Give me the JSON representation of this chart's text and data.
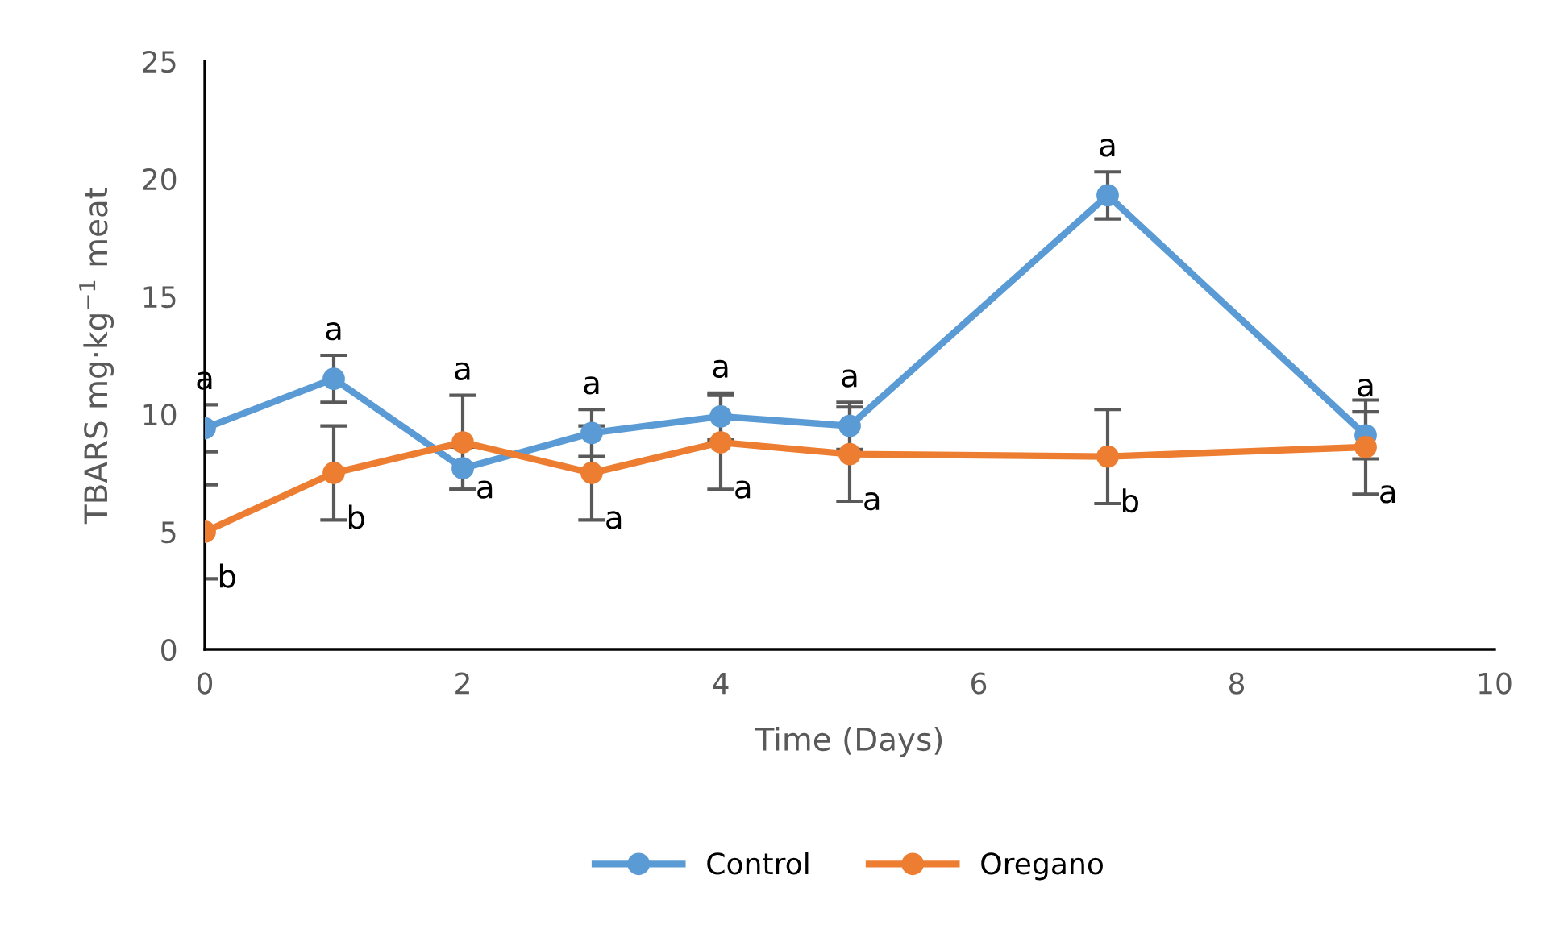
{
  "chart_data": {
    "type": "line",
    "xlabel": "Time (Days)",
    "ylabel": "TBARS mg·kg$^{−1}$ meat",
    "xlim": [
      0,
      10
    ],
    "xticks": [
      0,
      2,
      4,
      6,
      8,
      10
    ],
    "ylim": [
      0,
      25
    ],
    "yticks": [
      0,
      5,
      10,
      15,
      20,
      25
    ],
    "grid": false,
    "legend": "bottom",
    "marker": "circle",
    "line_style": "solid",
    "series": [
      {
        "name": "Control",
        "color": "#5b9bd5",
        "x": [
          0,
          1,
          2,
          3,
          4,
          5,
          7,
          9
        ],
        "values": [
          9.4,
          11.5,
          7.7,
          9.2,
          9.9,
          9.5,
          19.3,
          9.1
        ],
        "errors": [
          1.0,
          1.0,
          0.9,
          1.0,
          1.0,
          1.0,
          1.0,
          1.0
        ]
      },
      {
        "name": "Oregano",
        "color": "#ed7d31",
        "x": [
          0,
          1,
          2,
          3,
          4,
          5,
          7,
          9
        ],
        "values": [
          5.0,
          7.5,
          8.8,
          7.5,
          8.8,
          8.3,
          8.2,
          8.6
        ],
        "errors": [
          2.0,
          2.0,
          2.0,
          2.0,
          2.0,
          2.0,
          2.0,
          2.0
        ]
      }
    ],
    "annotations": [
      {
        "text": "a",
        "x": 0,
        "y": 9.4
      },
      {
        "text": "a",
        "x": 1,
        "y": 11.5
      },
      {
        "text": "a",
        "x": 2,
        "y": 8.8
      },
      {
        "text": "a",
        "x": 3,
        "y": 9.2
      },
      {
        "text": "a",
        "x": 4,
        "y": 9.9
      },
      {
        "text": "a",
        "x": 5,
        "y": 9.5
      },
      {
        "text": "a",
        "x": 7,
        "y": 19.3
      },
      {
        "text": "a",
        "x": 9,
        "y": 9.1
      },
      {
        "text": "b",
        "x": 0,
        "y": 5.0
      },
      {
        "text": "b",
        "x": 1,
        "y": 7.5
      },
      {
        "text": "a",
        "x": 2,
        "y": 7.7
      },
      {
        "text": "a",
        "x": 3,
        "y": 7.5
      },
      {
        "text": "a",
        "x": 4,
        "y": 8.8
      },
      {
        "text": "a",
        "x": 5,
        "y": 8.3
      },
      {
        "text": "b",
        "x": 7,
        "y": 8.2
      },
      {
        "text": "a",
        "x": 9,
        "y": 8.6
      }
    ]
  }
}
